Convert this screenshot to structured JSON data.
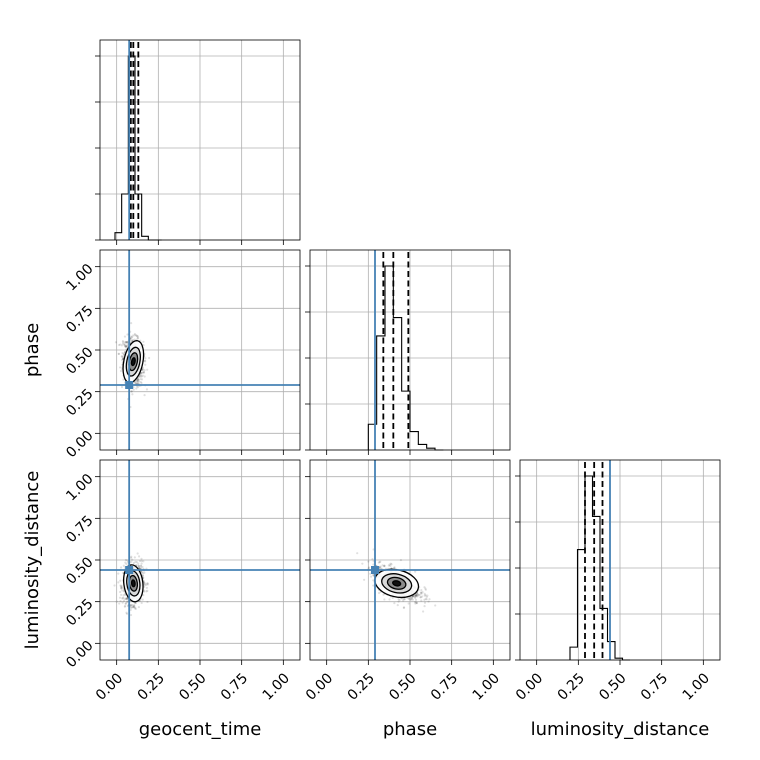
{
  "chart_data": {
    "type": "corner",
    "parameters": [
      {
        "name": "geocent_time",
        "label": "geocent_time"
      },
      {
        "name": "phase",
        "label": "phase"
      },
      {
        "name": "luminosity_distance",
        "label": "luminosity_distance"
      }
    ],
    "axis_range": [
      -0.1,
      1.1
    ],
    "ticks": [
      0.0,
      0.25,
      0.5,
      0.75,
      1.0
    ],
    "tick_labels": [
      "0.00",
      "0.25",
      "0.50",
      "0.75",
      "1.00"
    ],
    "grid": true,
    "truths": [
      0.075,
      0.29,
      0.44
    ],
    "truth_color": "#4682b4",
    "hist_color": "#000000",
    "histograms": [
      {
        "param": "geocent_time",
        "bin_edges": [
          -0.01,
          0.03,
          0.07,
          0.11,
          0.15,
          0.19,
          0.23,
          0.27
        ],
        "counts": [
          0.04,
          0.25,
          1.0,
          0.25,
          0.02,
          0.0,
          0.0
        ],
        "quantiles": [
          0.085,
          0.1,
          0.13
        ]
      },
      {
        "param": "phase",
        "bin_edges": [
          0.25,
          0.3,
          0.35,
          0.4,
          0.45,
          0.5,
          0.55,
          0.6,
          0.65,
          0.7
        ],
        "counts": [
          0.14,
          0.62,
          1.0,
          0.72,
          0.32,
          0.1,
          0.03,
          0.01,
          0.0
        ],
        "quantiles": [
          0.34,
          0.4,
          0.49
        ]
      },
      {
        "param": "luminosity_distance",
        "bin_edges": [
          0.2,
          0.245,
          0.29,
          0.335,
          0.38,
          0.425,
          0.47,
          0.515,
          0.56
        ],
        "counts": [
          0.07,
          0.6,
          1.0,
          0.78,
          0.28,
          0.1,
          0.01,
          0.0
        ],
        "quantiles": [
          0.29,
          0.345,
          0.395
        ]
      }
    ],
    "joint_posteriors": [
      {
        "x": "geocent_time",
        "y": "phase",
        "center": [
          0.1,
          0.43
        ],
        "spread": [
          0.03,
          0.07
        ],
        "corr": -0.15
      },
      {
        "x": "geocent_time",
        "y": "luminosity_distance",
        "center": [
          0.1,
          0.36
        ],
        "spread": [
          0.03,
          0.06
        ],
        "corr": 0.1
      },
      {
        "x": "phase",
        "y": "luminosity_distance",
        "center": [
          0.42,
          0.36
        ],
        "spread": [
          0.07,
          0.05
        ],
        "corr": -0.55
      }
    ]
  }
}
